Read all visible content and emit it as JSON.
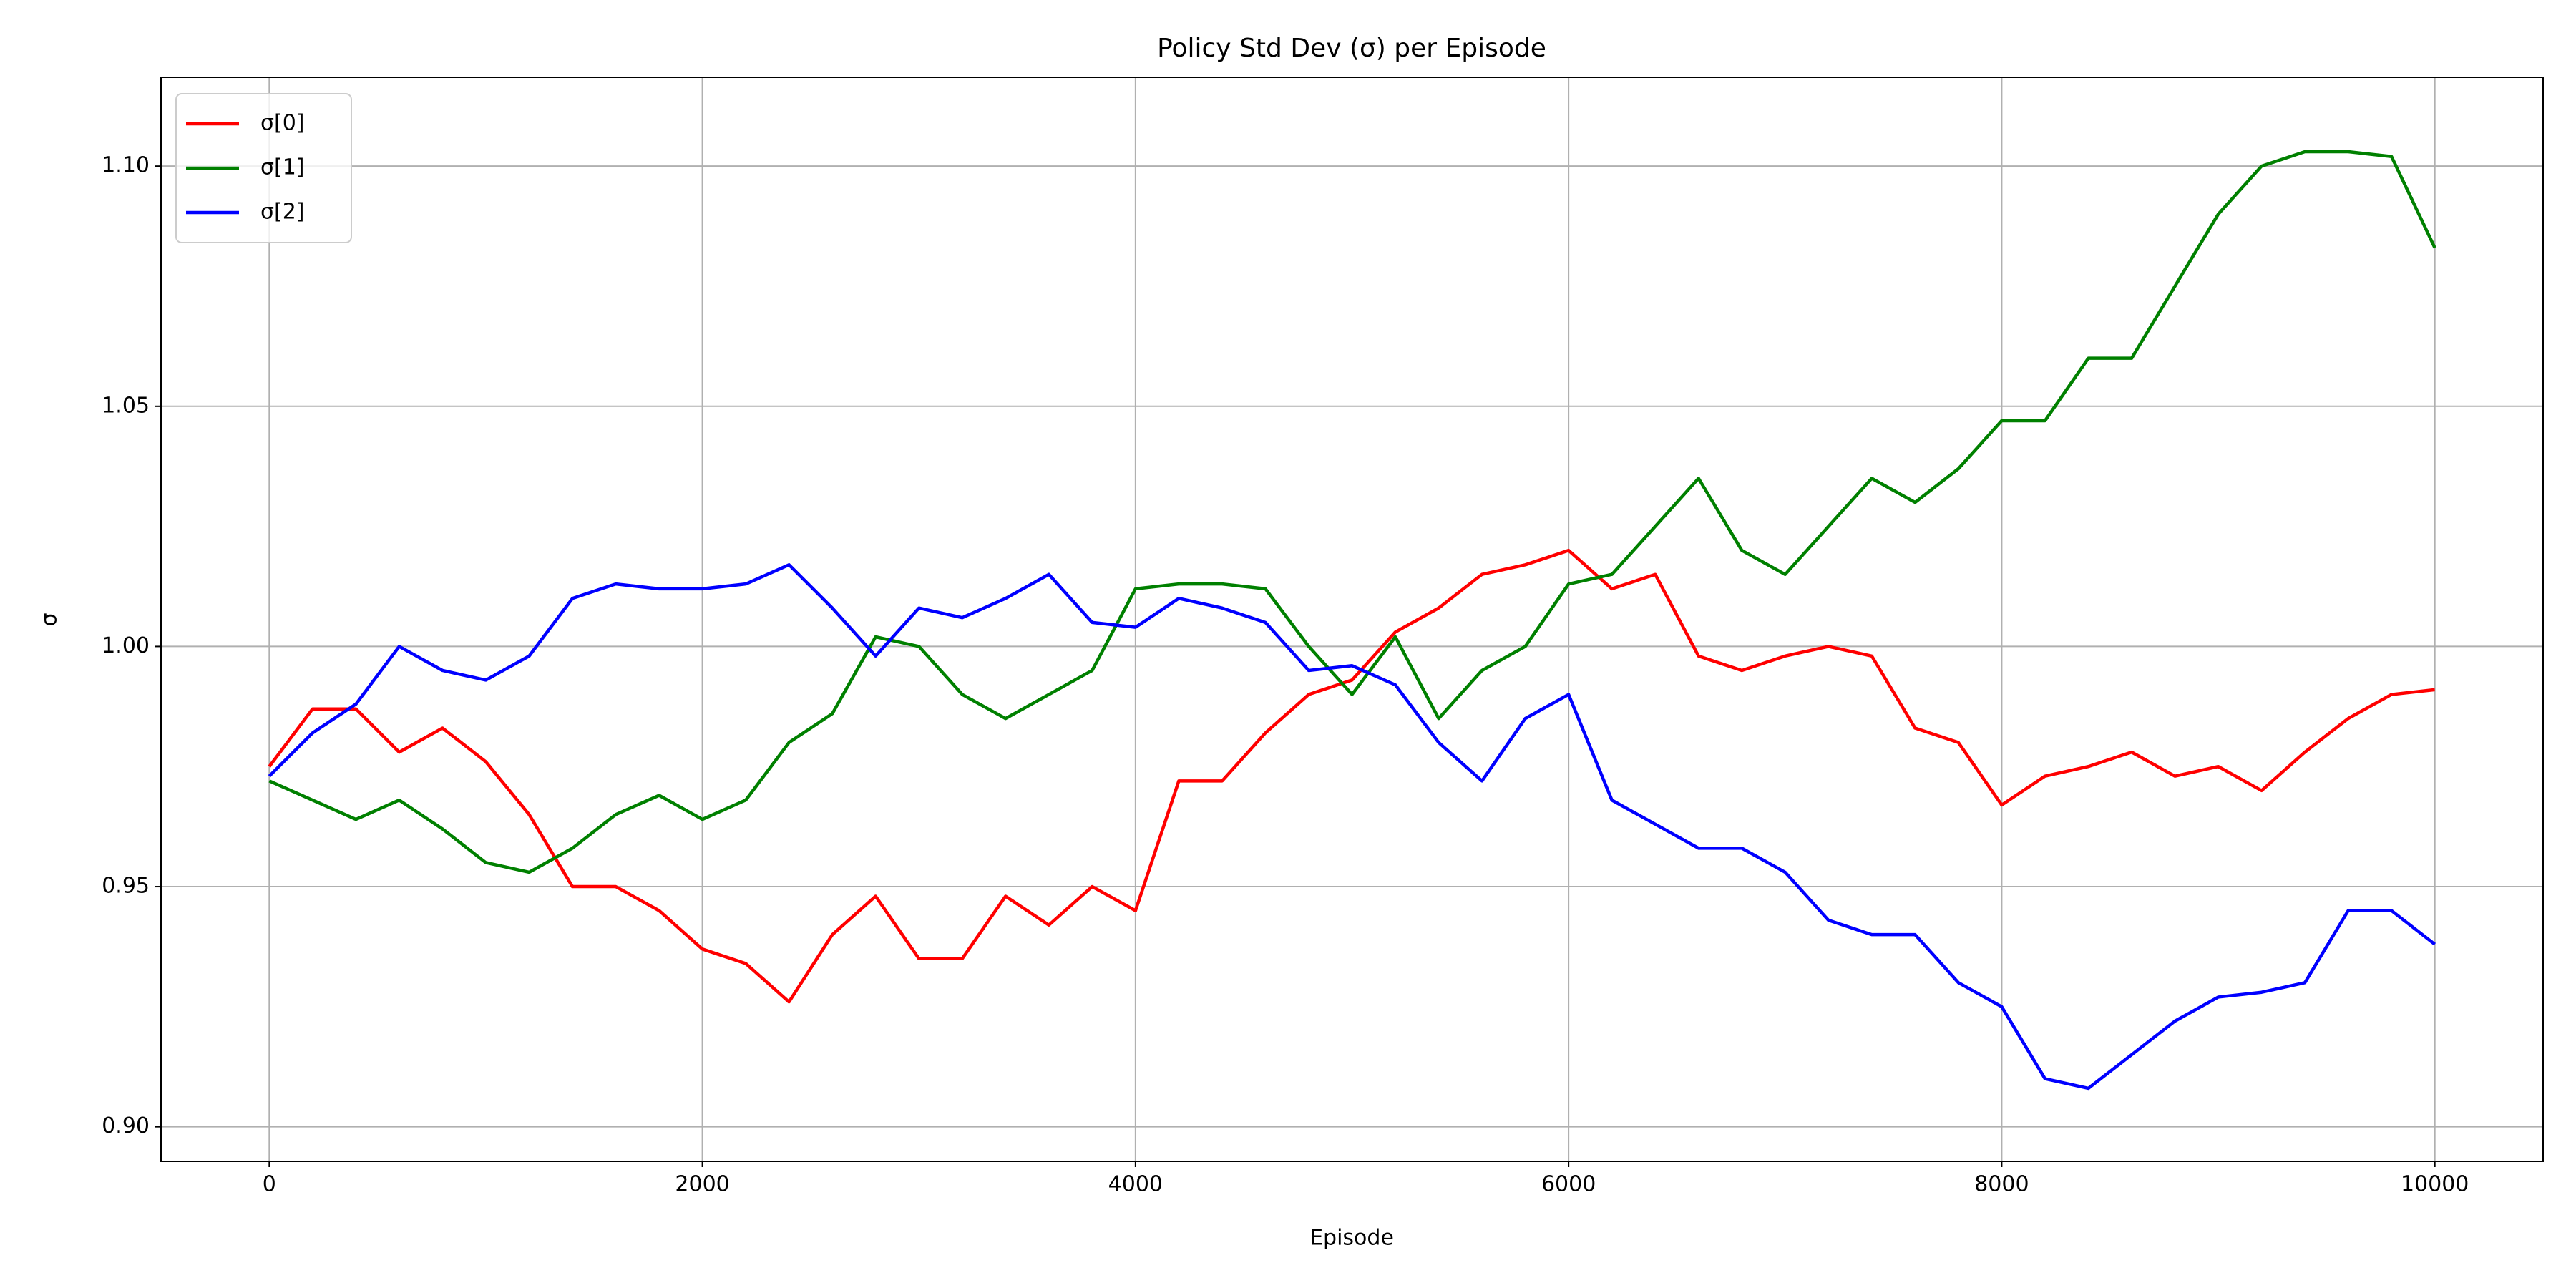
{
  "chart_data": {
    "type": "line",
    "title": "Policy Std Dev (σ) per Episode",
    "xlabel": "Episode",
    "ylabel": "σ",
    "x": [
      0,
      200,
      400,
      600,
      800,
      1000,
      1200,
      1400,
      1600,
      1800,
      2000,
      2200,
      2400,
      2600,
      2800,
      3000,
      3200,
      3400,
      3600,
      3800,
      4000,
      4200,
      4400,
      4600,
      4800,
      5000,
      5200,
      5400,
      5600,
      5800,
      6000,
      6200,
      6400,
      6600,
      6800,
      7000,
      7200,
      7400,
      7600,
      7800,
      8000,
      8200,
      8400,
      8600,
      8800,
      9000,
      9200,
      9400,
      9600,
      9800,
      10000
    ],
    "series": [
      {
        "name": "σ[0]",
        "color": "#ff0000",
        "values": [
          0.975,
          0.987,
          0.987,
          0.978,
          0.983,
          0.976,
          0.965,
          0.95,
          0.95,
          0.945,
          0.937,
          0.934,
          0.926,
          0.94,
          0.948,
          0.935,
          0.935,
          0.948,
          0.942,
          0.95,
          0.945,
          0.972,
          0.972,
          0.982,
          0.99,
          0.993,
          1.003,
          1.008,
          1.015,
          1.017,
          1.02,
          1.012,
          1.015,
          0.998,
          0.995,
          0.998,
          1.0,
          0.998,
          0.983,
          0.98,
          0.967,
          0.973,
          0.975,
          0.978,
          0.973,
          0.975,
          0.97,
          0.978,
          0.985,
          0.99,
          0.991
        ]
      },
      {
        "name": "σ[1]",
        "color": "#008000",
        "values": [
          0.972,
          0.968,
          0.964,
          0.968,
          0.962,
          0.955,
          0.953,
          0.958,
          0.965,
          0.969,
          0.964,
          0.968,
          0.98,
          0.986,
          1.002,
          1.0,
          0.99,
          0.985,
          0.99,
          0.995,
          1.012,
          1.013,
          1.013,
          1.012,
          1.0,
          0.99,
          1.002,
          0.985,
          0.995,
          1.0,
          1.013,
          1.015,
          1.025,
          1.035,
          1.02,
          1.015,
          1.025,
          1.035,
          1.03,
          1.037,
          1.047,
          1.047,
          1.06,
          1.06,
          1.075,
          1.09,
          1.1,
          1.103,
          1.103,
          1.102,
          1.083
        ]
      },
      {
        "name": "σ[2]",
        "color": "#0000ff",
        "values": [
          0.973,
          0.982,
          0.988,
          1.0,
          0.995,
          0.993,
          0.998,
          1.01,
          1.013,
          1.012,
          1.012,
          1.013,
          1.017,
          1.008,
          0.998,
          1.008,
          1.006,
          1.01,
          1.015,
          1.005,
          1.004,
          1.01,
          1.008,
          1.005,
          0.995,
          0.996,
          0.992,
          0.98,
          0.972,
          0.985,
          0.99,
          0.968,
          0.963,
          0.958,
          0.958,
          0.953,
          0.943,
          0.94,
          0.94,
          0.93,
          0.925,
          0.91,
          0.908,
          0.915,
          0.922,
          0.927,
          0.928,
          0.93,
          0.945,
          0.945,
          0.938
        ]
      }
    ],
    "xlim": [
      -500,
      10500
    ],
    "ylim": [
      0.8928,
      1.1185
    ],
    "xticks": [
      0,
      2000,
      4000,
      6000,
      8000,
      10000
    ],
    "yticks": [
      {
        "value": 0.9,
        "label": "0.90"
      },
      {
        "value": 0.95,
        "label": "0.95"
      },
      {
        "value": 1.0,
        "label": "1.00"
      },
      {
        "value": 1.05,
        "label": "1.05"
      },
      {
        "value": 1.1,
        "label": "1.10"
      }
    ],
    "grid": true,
    "legend": "upper left"
  }
}
